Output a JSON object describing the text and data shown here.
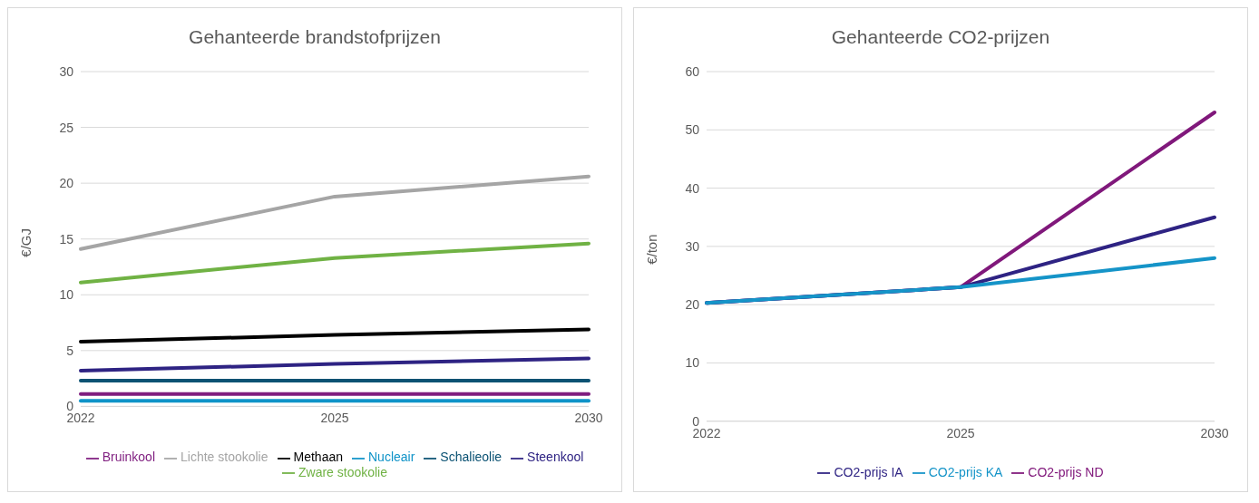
{
  "chart_data": [
    {
      "type": "line",
      "title": "Gehanteerde brandstofprijzen",
      "ylabel": "€/GJ",
      "categories": [
        "2022",
        "2025",
        "2030"
      ],
      "ylim": [
        0,
        30
      ],
      "yticks": [
        0,
        5,
        10,
        15,
        20,
        25,
        30
      ],
      "grid": "y",
      "legend": "bottom",
      "marker": "none",
      "line_style": "solid",
      "series": [
        {
          "name": "Lichte stookolie",
          "color": "#a5a5a5",
          "values": [
            14.1,
            18.8,
            20.6
          ]
        },
        {
          "name": "Zware stookolie",
          "color": "#70b244",
          "values": [
            11.1,
            13.3,
            14.6
          ]
        },
        {
          "name": "Methaan",
          "color": "#000000",
          "values": [
            5.8,
            6.4,
            6.9
          ]
        },
        {
          "name": "Steenkool",
          "color": "#2e2383",
          "values": [
            3.2,
            3.8,
            4.3
          ]
        },
        {
          "name": "Schalieolie",
          "color": "#0b5273",
          "values": [
            2.3,
            2.3,
            2.3
          ]
        },
        {
          "name": "Bruinkool",
          "color": "#7f1d7f",
          "values": [
            1.1,
            1.1,
            1.1
          ]
        },
        {
          "name": "Nucleair",
          "color": "#0f93c8",
          "values": [
            0.5,
            0.5,
            0.5
          ]
        }
      ]
    },
    {
      "type": "line",
      "title": "Gehanteerde CO2-prijzen",
      "ylabel": "€/ton",
      "categories": [
        "2022",
        "2025",
        "2030"
      ],
      "ylim": [
        0,
        60
      ],
      "yticks": [
        0,
        10,
        20,
        30,
        40,
        50,
        60
      ],
      "grid": "y",
      "legend": "bottom",
      "marker": "none",
      "line_style": "solid",
      "series": [
        {
          "name": "CO2-prijs ND",
          "color": "#80187b",
          "values": [
            20.3,
            23,
            53
          ]
        },
        {
          "name": "CO2-prijs IA",
          "color": "#2e2383",
          "values": [
            20.3,
            23,
            35
          ]
        },
        {
          "name": "CO2-prijs KA",
          "color": "#1594c8",
          "values": [
            20.3,
            23,
            28
          ]
        }
      ]
    }
  ]
}
